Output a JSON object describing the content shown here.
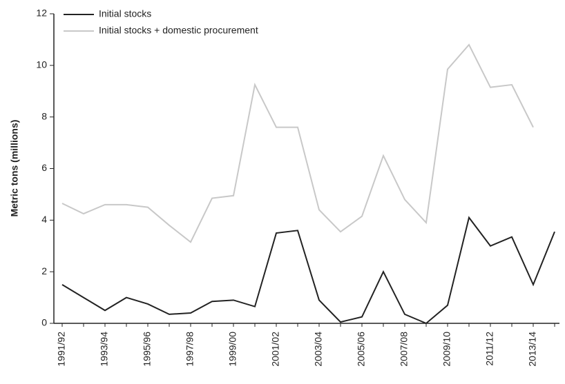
{
  "chart_data": {
    "type": "line",
    "y_label": "Metric tons (millions)",
    "categories": [
      "1991/92",
      null,
      "1993/94",
      null,
      "1995/96",
      null,
      "1997/98",
      null,
      "1999/00",
      null,
      "2001/02",
      null,
      "2003/04",
      null,
      "2005/06",
      null,
      "2007/08",
      null,
      "2009/10",
      null,
      "2011/12",
      null,
      "2013/14",
      null
    ],
    "series": [
      {
        "name": "Initial stocks",
        "color": "#222222",
        "values": [
          1.5,
          1.0,
          0.5,
          1.0,
          0.75,
          0.35,
          0.4,
          0.85,
          0.9,
          0.65,
          3.5,
          3.6,
          0.9,
          0.05,
          0.25,
          2.0,
          0.35,
          0.0,
          0.7,
          4.1,
          3.0,
          3.35,
          1.5,
          3.55
        ]
      },
      {
        "name": "Initial stocks + domestic procurement",
        "color": "#c8c8c8",
        "values": [
          4.65,
          4.25,
          4.6,
          4.6,
          4.5,
          3.8,
          3.15,
          4.85,
          4.95,
          9.25,
          7.6,
          7.6,
          4.4,
          3.55,
          4.15,
          6.5,
          4.8,
          3.9,
          9.85,
          10.8,
          9.15,
          9.25,
          7.6,
          null
        ]
      }
    ],
    "ylim": [
      0,
      12
    ],
    "yticks": [
      0,
      2,
      4,
      6,
      8,
      10,
      12
    ],
    "legend": "top-left"
  }
}
